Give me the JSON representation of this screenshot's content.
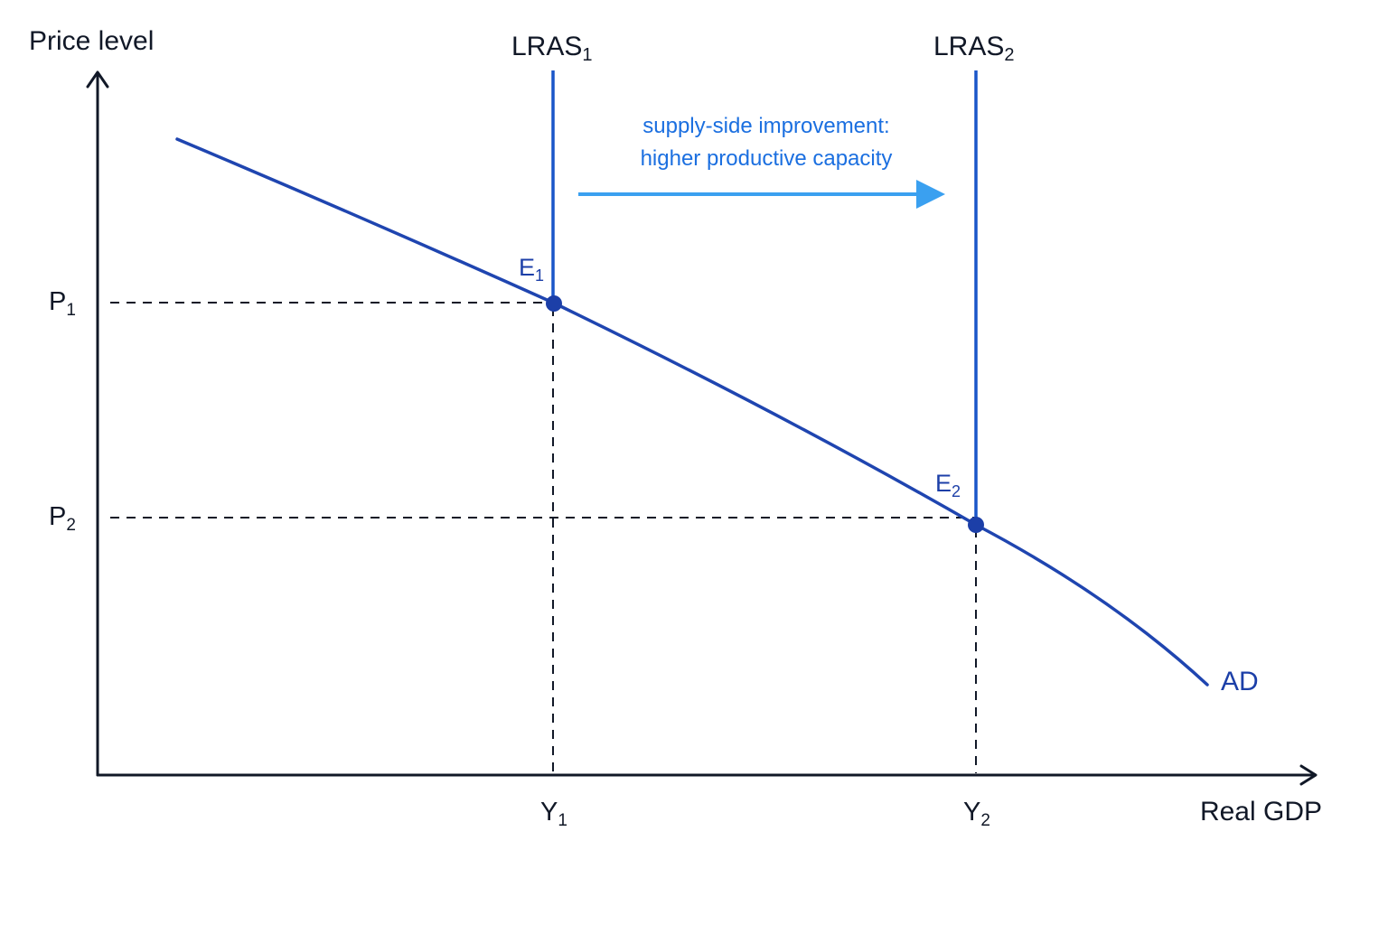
{
  "axes": {
    "y_title": "Price level",
    "x_title": "Real GDP"
  },
  "lras": [
    {
      "base": "LRAS",
      "sub": "1"
    },
    {
      "base": "LRAS",
      "sub": "2"
    }
  ],
  "equilibria": [
    {
      "base": "E",
      "sub": "1"
    },
    {
      "base": "E",
      "sub": "2"
    }
  ],
  "price_ticks": [
    {
      "base": "P",
      "sub": "1"
    },
    {
      "base": "P",
      "sub": "2"
    }
  ],
  "output_ticks": [
    {
      "base": "Y",
      "sub": "1"
    },
    {
      "base": "Y",
      "sub": "2"
    }
  ],
  "curve_label": "AD",
  "shift_annotation": {
    "line1": "supply-side improvement:",
    "line2": "higher productive capacity"
  },
  "colors": {
    "axis": "#111827",
    "text": "#111827",
    "curve": "#1f45b0",
    "lras": "#1a56c9",
    "arrow": "#3aa0f0",
    "annotation": "#1b6fe0",
    "point": "#1c3fa8",
    "guides": "#111827"
  }
}
